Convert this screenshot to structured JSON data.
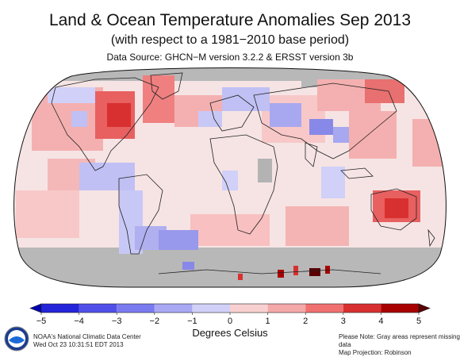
{
  "header": {
    "title": "Land & Ocean Temperature Anomalies Sep 2013",
    "subtitle": "(with respect to a 1981−2010 base period)",
    "source": "Data Source: GHCN−M version 3.2.2 & ERSST version 3b"
  },
  "map": {
    "projection_note": "Map Projection: Robinson",
    "missing_note": "Please Note: Gray areas represent missing data",
    "missing_color": "#b3b3b3",
    "ocean_neutral_color": "#f4f4f4"
  },
  "colorbar": {
    "title": "Degrees Celsius",
    "ticks": [
      "−5",
      "−4",
      "−3",
      "−2",
      "−1",
      "0",
      "1",
      "2",
      "3",
      "4",
      "5"
    ],
    "colors": [
      "#0000b0",
      "#2424d8",
      "#5050e8",
      "#7a7af0",
      "#a8a8f4",
      "#d0d0f8",
      "#f8d0d0",
      "#f4a8a8",
      "#f07070",
      "#d83030",
      "#a80000",
      "#5a0000"
    ]
  },
  "footer": {
    "left_line1": "NOAA's National Climatic Data Center",
    "left_line2": "Wed Oct 23 10:31:51 EDT 2013",
    "right_line1": "Please Note: Gray areas represent missing data",
    "right_line2": "Map Projection: Robinson"
  },
  "logo": {
    "label": "NOAA"
  }
}
